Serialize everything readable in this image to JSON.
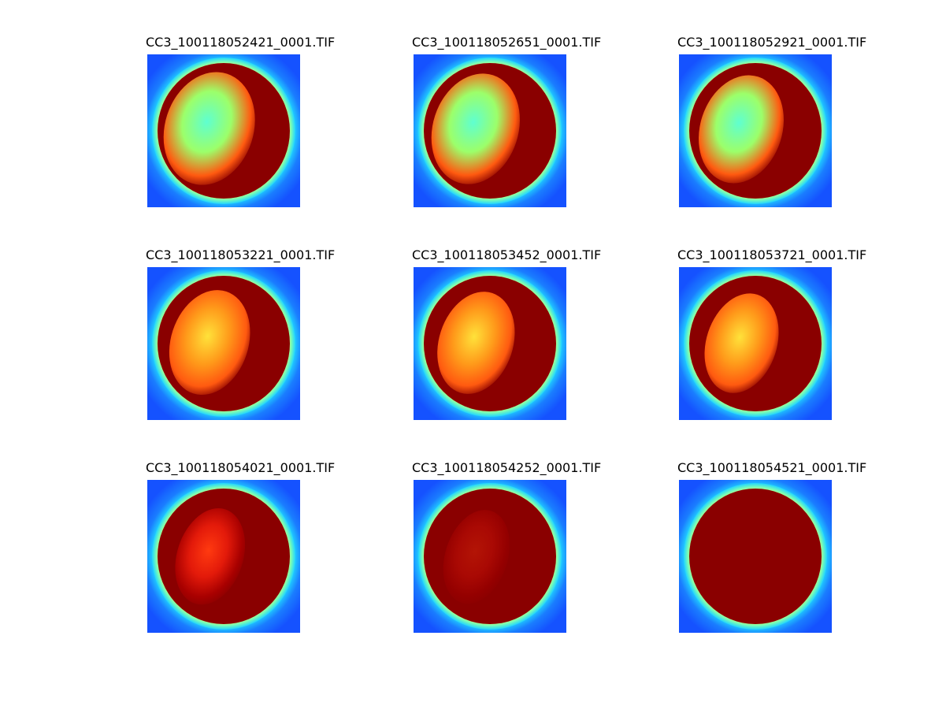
{
  "figure": {
    "panels": [
      {
        "title": "CC3_100118052421_0001.TIF",
        "saturation": 0.35
      },
      {
        "title": "CC3_100118052651_0001.TIF",
        "saturation": 0.42
      },
      {
        "title": "CC3_100118052921_0001.TIF",
        "saturation": 0.5
      },
      {
        "title": "CC3_100118053221_0001.TIF",
        "saturation": 0.6
      },
      {
        "title": "CC3_100118053452_0001.TIF",
        "saturation": 0.68
      },
      {
        "title": "CC3_100118053721_0001.TIF",
        "saturation": 0.76
      },
      {
        "title": "CC3_100118054021_0001.TIF",
        "saturation": 0.86
      },
      {
        "title": "CC3_100118054252_0001.TIF",
        "saturation": 0.94
      },
      {
        "title": "CC3_100118054521_0001.TIF",
        "saturation": 1.0
      }
    ]
  }
}
